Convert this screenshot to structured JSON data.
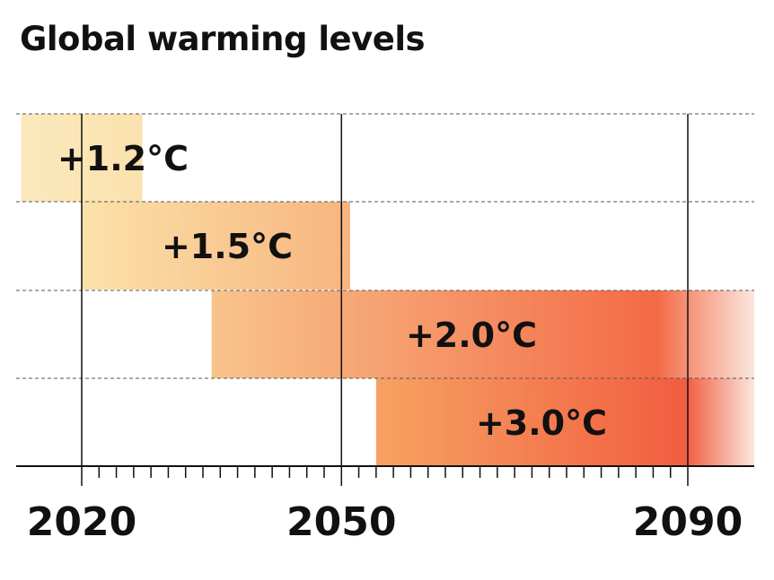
{
  "chart_data": {
    "type": "bar",
    "subtype": "horizontal-range",
    "title": "Global warming levels",
    "xlabel": "",
    "ylabel": "",
    "xlim": [
      2012.5,
      2097.5
    ],
    "x_ticks": [
      2020,
      2050,
      2090
    ],
    "minor_tick_step": 2,
    "grid": "dashed horizontal row separators, solid vertical lines at labelled years",
    "categories": [
      "+1.2°C",
      "+1.5°C",
      "+2.0°C",
      "+3.0°C"
    ],
    "ranges": [
      {
        "label": "+1.2°C",
        "start": 2013,
        "end": 2027
      },
      {
        "label": "+1.5°C",
        "start": 2020,
        "end": 2051
      },
      {
        "label": "+2.0°C",
        "start": 2035,
        "end": 2098
      },
      {
        "label": "+3.0°C",
        "start": 2054,
        "end": 2098
      }
    ],
    "colors": [
      [
        "#fbe8bd",
        "#fbe2ae"
      ],
      [
        "#fce1aa",
        "#f7b57f"
      ],
      [
        "#f8c48c",
        "#f36a46"
      ],
      [
        "#f6a262",
        "#f25d40"
      ]
    ]
  }
}
